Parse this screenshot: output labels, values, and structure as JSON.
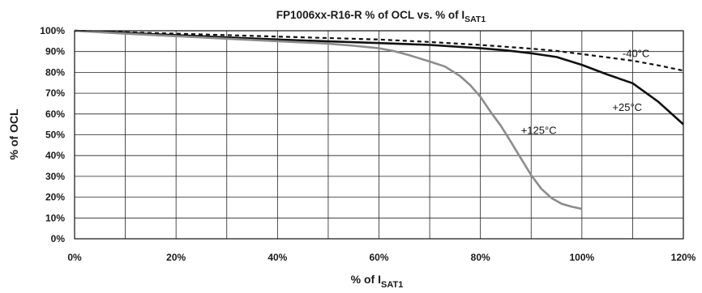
{
  "chart_data": {
    "type": "line",
    "title": "FP1006xx-R16-R   % of OCL vs. % of I",
    "title_sub": "SAT1",
    "xlabel": "% of I",
    "xlabel_sub": "SAT1",
    "ylabel": "% of OCL",
    "xlim": [
      0,
      120
    ],
    "ylim": [
      0,
      100
    ],
    "x_ticks": [
      0,
      20,
      40,
      60,
      80,
      100,
      120
    ],
    "x_tick_labels": [
      "0%",
      "20%",
      "40%",
      "60%",
      "80%",
      "100%",
      "120%"
    ],
    "y_ticks": [
      0,
      10,
      20,
      30,
      40,
      50,
      60,
      70,
      80,
      90,
      100
    ],
    "y_tick_labels": [
      "0%",
      "10%",
      "20%",
      "30%",
      "40%",
      "50%",
      "60%",
      "70%",
      "80%",
      "90%",
      "100%"
    ],
    "grid": true,
    "series": [
      {
        "name": "-40°C",
        "color": "#111111",
        "dash": "dashed",
        "x": [
          0,
          10,
          20,
          30,
          40,
          50,
          60,
          70,
          80,
          90,
          95,
          100,
          105,
          110,
          115,
          120
        ],
        "y": [
          100,
          99.3,
          98.6,
          97.9,
          97.2,
          96.5,
          95.8,
          94.6,
          93.2,
          91.4,
          90.3,
          88.8,
          87.2,
          85.6,
          83.4,
          80.8
        ]
      },
      {
        "name": "+25°C",
        "color": "#111111",
        "dash": "solid",
        "x": [
          0,
          10,
          20,
          30,
          40,
          50,
          60,
          70,
          80,
          85,
          90,
          95,
          100,
          105,
          110,
          115,
          120
        ],
        "y": [
          100,
          99.0,
          97.9,
          96.8,
          95.8,
          94.9,
          94.1,
          93.2,
          91.6,
          90.6,
          89.2,
          87.4,
          83.6,
          79.0,
          74.8,
          66.0,
          55.0
        ]
      },
      {
        "name": "+125°C",
        "color": "#8c8c8c",
        "dash": "solid",
        "x": [
          0,
          10,
          20,
          30,
          40,
          50,
          55,
          60,
          63,
          66,
          70,
          73,
          76,
          78,
          80,
          82,
          84,
          86,
          88,
          90,
          92,
          94,
          96,
          98,
          100
        ],
        "y": [
          100,
          98.6,
          97.4,
          96.2,
          95.0,
          93.8,
          92.8,
          91.6,
          90.2,
          88.2,
          85.2,
          82.8,
          78.2,
          73.8,
          68.2,
          61.0,
          54.4,
          46.6,
          38.6,
          30.6,
          24.0,
          19.6,
          16.8,
          15.4,
          14.4
        ]
      }
    ],
    "annotations": [
      {
        "text": "-40°C",
        "x": 108,
        "y": 89
      },
      {
        "text": "+25°C",
        "x": 106,
        "y": 63
      },
      {
        "text": "+125°C",
        "x": 88,
        "y": 52
      }
    ]
  }
}
